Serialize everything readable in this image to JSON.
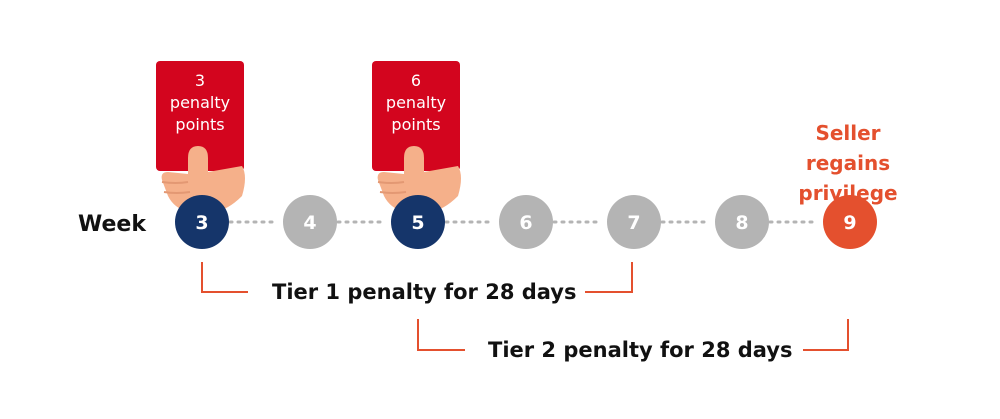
{
  "diagram": {
    "week_label": "Week",
    "weeks": [
      {
        "label": "3",
        "state": "penalty"
      },
      {
        "label": "4",
        "state": "normal"
      },
      {
        "label": "5",
        "state": "penalty"
      },
      {
        "label": "6",
        "state": "normal"
      },
      {
        "label": "7",
        "state": "normal"
      },
      {
        "label": "8",
        "state": "normal"
      },
      {
        "label": "9",
        "state": "regained"
      }
    ],
    "cards": [
      {
        "line1": "3",
        "line2": "penalty",
        "line3": "points"
      },
      {
        "line1": "6",
        "line2": "penalty",
        "line3": "points"
      }
    ],
    "regain_text": {
      "line1": "Seller regains",
      "line2": "privilege"
    },
    "tiers": [
      {
        "label": "Tier 1 penalty for 28 days"
      },
      {
        "label": "Tier 2 penalty for 28 days"
      }
    ],
    "colors": {
      "penalty": "#15356a",
      "normal": "#b4b4b4",
      "regained": "#e4502e",
      "card": "#d3051e",
      "bracket": "#e4502e",
      "skin": "#f5b08a"
    }
  }
}
